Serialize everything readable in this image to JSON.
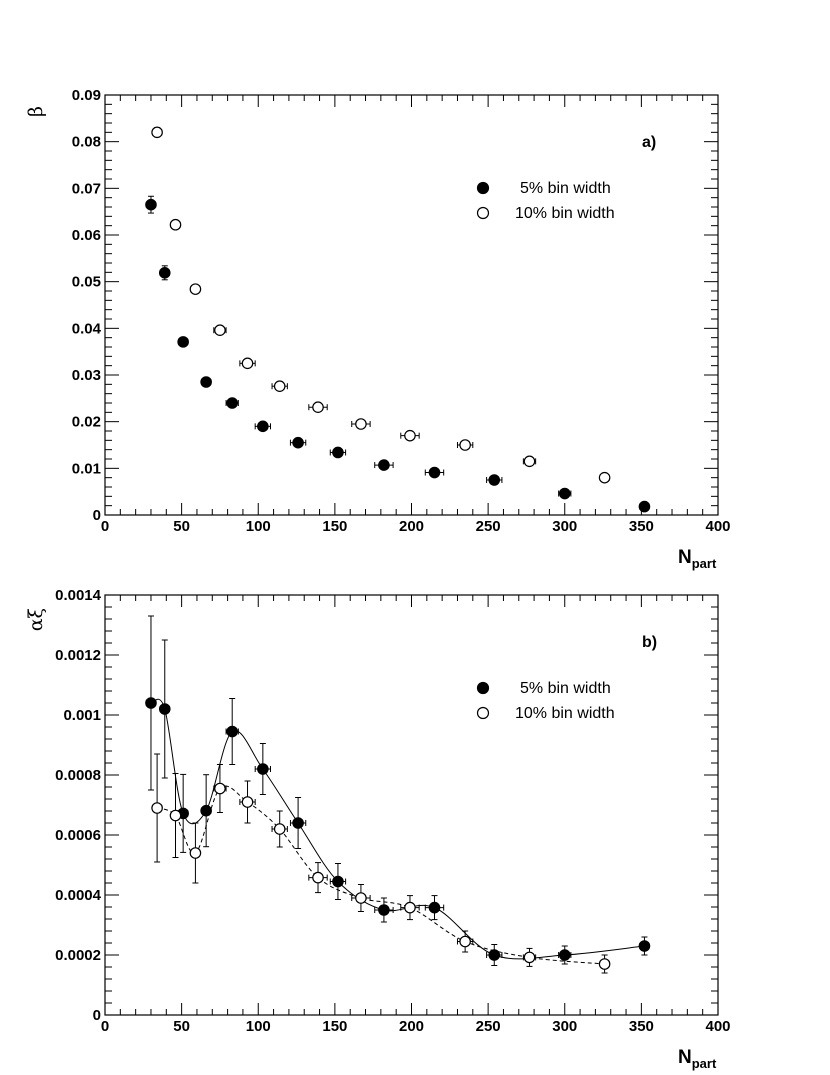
{
  "chart_data": [
    {
      "type": "scatter",
      "panel_label": "a)",
      "ylabel": "β",
      "xlabel_main": "N",
      "xlabel_sub": "part",
      "xlim": [
        0,
        400
      ],
      "ylim": [
        0,
        0.09
      ],
      "x_ticks": [
        "0",
        "50",
        "100",
        "150",
        "200",
        "250",
        "300",
        "350",
        "400"
      ],
      "y_ticks": [
        "0",
        "0.01",
        "0.02",
        "0.03",
        "0.04",
        "0.05",
        "0.06",
        "0.07",
        "0.08",
        "0.09"
      ],
      "legend_position": "top-right",
      "series": [
        {
          "name": "5% bin width",
          "marker": "filled-circle",
          "points": [
            {
              "x": 30,
              "y": 0.0665,
              "yerr": 0.0018,
              "xerr": 3
            },
            {
              "x": 39,
              "y": 0.0519,
              "yerr": 0.0015,
              "xerr": 3
            },
            {
              "x": 51,
              "y": 0.0371,
              "yerr": 0.0008,
              "xerr": 3
            },
            {
              "x": 66,
              "y": 0.0285,
              "yerr": 0.0006,
              "xerr": 3
            },
            {
              "x": 83,
              "y": 0.024,
              "yerr": 0.0006,
              "xerr": 4
            },
            {
              "x": 103,
              "y": 0.019,
              "yerr": 0.0005,
              "xerr": 5
            },
            {
              "x": 126,
              "y": 0.0155,
              "yerr": 0.0004,
              "xerr": 5
            },
            {
              "x": 152,
              "y": 0.0134,
              "yerr": 0.0004,
              "xerr": 5
            },
            {
              "x": 182,
              "y": 0.0107,
              "yerr": 0.0003,
              "xerr": 6
            },
            {
              "x": 215,
              "y": 0.0091,
              "yerr": 0.0003,
              "xerr": 6
            },
            {
              "x": 254,
              "y": 0.0075,
              "yerr": 0.0003,
              "xerr": 5
            },
            {
              "x": 300,
              "y": 0.0046,
              "yerr": 0.0002,
              "xerr": 4
            },
            {
              "x": 352,
              "y": 0.0018,
              "yerr": 0.0002,
              "xerr": 3
            }
          ]
        },
        {
          "name": "10% bin width",
          "marker": "open-circle",
          "points": [
            {
              "x": 34,
              "y": 0.082,
              "yerr": 0.001,
              "xerr": 3
            },
            {
              "x": 46,
              "y": 0.0622,
              "yerr": 0.0008,
              "xerr": 3
            },
            {
              "x": 59,
              "y": 0.0484,
              "yerr": 0.0006,
              "xerr": 3
            },
            {
              "x": 75,
              "y": 0.0396,
              "yerr": 0.0005,
              "xerr": 4
            },
            {
              "x": 93,
              "y": 0.0325,
              "yerr": 0.0005,
              "xerr": 5
            },
            {
              "x": 114,
              "y": 0.0276,
              "yerr": 0.0004,
              "xerr": 5
            },
            {
              "x": 139,
              "y": 0.0231,
              "yerr": 0.0004,
              "xerr": 6
            },
            {
              "x": 167,
              "y": 0.0195,
              "yerr": 0.0004,
              "xerr": 6
            },
            {
              "x": 199,
              "y": 0.017,
              "yerr": 0.0003,
              "xerr": 6
            },
            {
              "x": 235,
              "y": 0.015,
              "yerr": 0.0003,
              "xerr": 5
            },
            {
              "x": 277,
              "y": 0.0115,
              "yerr": 0.0003,
              "xerr": 4
            },
            {
              "x": 326,
              "y": 0.008,
              "yerr": 0.0002,
              "xerr": 3
            }
          ]
        }
      ]
    },
    {
      "type": "line",
      "panel_label": "b)",
      "ylabel": "αξ",
      "xlabel_main": "N",
      "xlabel_sub": "part",
      "xlim": [
        0,
        400
      ],
      "ylim": [
        0,
        0.0014
      ],
      "x_ticks": [
        "0",
        "50",
        "100",
        "150",
        "200",
        "250",
        "300",
        "350",
        "400"
      ],
      "y_ticks": [
        "0",
        "0.0002",
        "0.0004",
        "0.0006",
        "0.0008",
        "0.001",
        "0.0012",
        "0.0014"
      ],
      "legend_position": "top-right",
      "series": [
        {
          "name": "5% bin width",
          "marker": "filled-circle",
          "line": "solid",
          "points": [
            {
              "x": 30,
              "y": 0.00104,
              "yerr": 0.00029,
              "xerr": 3
            },
            {
              "x": 39,
              "y": 0.00102,
              "yerr": 0.00023,
              "xerr": 3
            },
            {
              "x": 51,
              "y": 0.000672,
              "yerr": 0.00013,
              "xerr": 3
            },
            {
              "x": 66,
              "y": 0.000681,
              "yerr": 0.00012,
              "xerr": 3
            },
            {
              "x": 83,
              "y": 0.000945,
              "yerr": 0.00011,
              "xerr": 4
            },
            {
              "x": 103,
              "y": 0.00082,
              "yerr": 8.5e-05,
              "xerr": 5
            },
            {
              "x": 126,
              "y": 0.00064,
              "yerr": 8.5e-05,
              "xerr": 5
            },
            {
              "x": 152,
              "y": 0.000445,
              "yerr": 6e-05,
              "xerr": 5
            },
            {
              "x": 182,
              "y": 0.00035,
              "yerr": 4e-05,
              "xerr": 6
            },
            {
              "x": 215,
              "y": 0.000358,
              "yerr": 4e-05,
              "xerr": 6
            },
            {
              "x": 254,
              "y": 0.0002,
              "yerr": 3.5e-05,
              "xerr": 5
            },
            {
              "x": 300,
              "y": 0.0002,
              "yerr": 3e-05,
              "xerr": 4
            },
            {
              "x": 352,
              "y": 0.00023,
              "yerr": 3e-05,
              "xerr": 3
            }
          ]
        },
        {
          "name": "10% bin width",
          "marker": "open-circle",
          "line": "dashed",
          "points": [
            {
              "x": 34,
              "y": 0.00069,
              "yerr": 0.00018,
              "xerr": 3
            },
            {
              "x": 46,
              "y": 0.000665,
              "yerr": 0.00014,
              "xerr": 3
            },
            {
              "x": 59,
              "y": 0.00054,
              "yerr": 0.0001,
              "xerr": 3
            },
            {
              "x": 75,
              "y": 0.000755,
              "yerr": 8e-05,
              "xerr": 4
            },
            {
              "x": 93,
              "y": 0.00071,
              "yerr": 7e-05,
              "xerr": 5
            },
            {
              "x": 114,
              "y": 0.00062,
              "yerr": 6e-05,
              "xerr": 5
            },
            {
              "x": 139,
              "y": 0.000458,
              "yerr": 5e-05,
              "xerr": 6
            },
            {
              "x": 167,
              "y": 0.00039,
              "yerr": 4.5e-05,
              "xerr": 6
            },
            {
              "x": 199,
              "y": 0.000358,
              "yerr": 4e-05,
              "xerr": 6
            },
            {
              "x": 235,
              "y": 0.000245,
              "yerr": 3.5e-05,
              "xerr": 5
            },
            {
              "x": 277,
              "y": 0.000192,
              "yerr": 3e-05,
              "xerr": 4
            },
            {
              "x": 326,
              "y": 0.00017,
              "yerr": 3e-05,
              "xerr": 3
            }
          ]
        }
      ]
    }
  ]
}
